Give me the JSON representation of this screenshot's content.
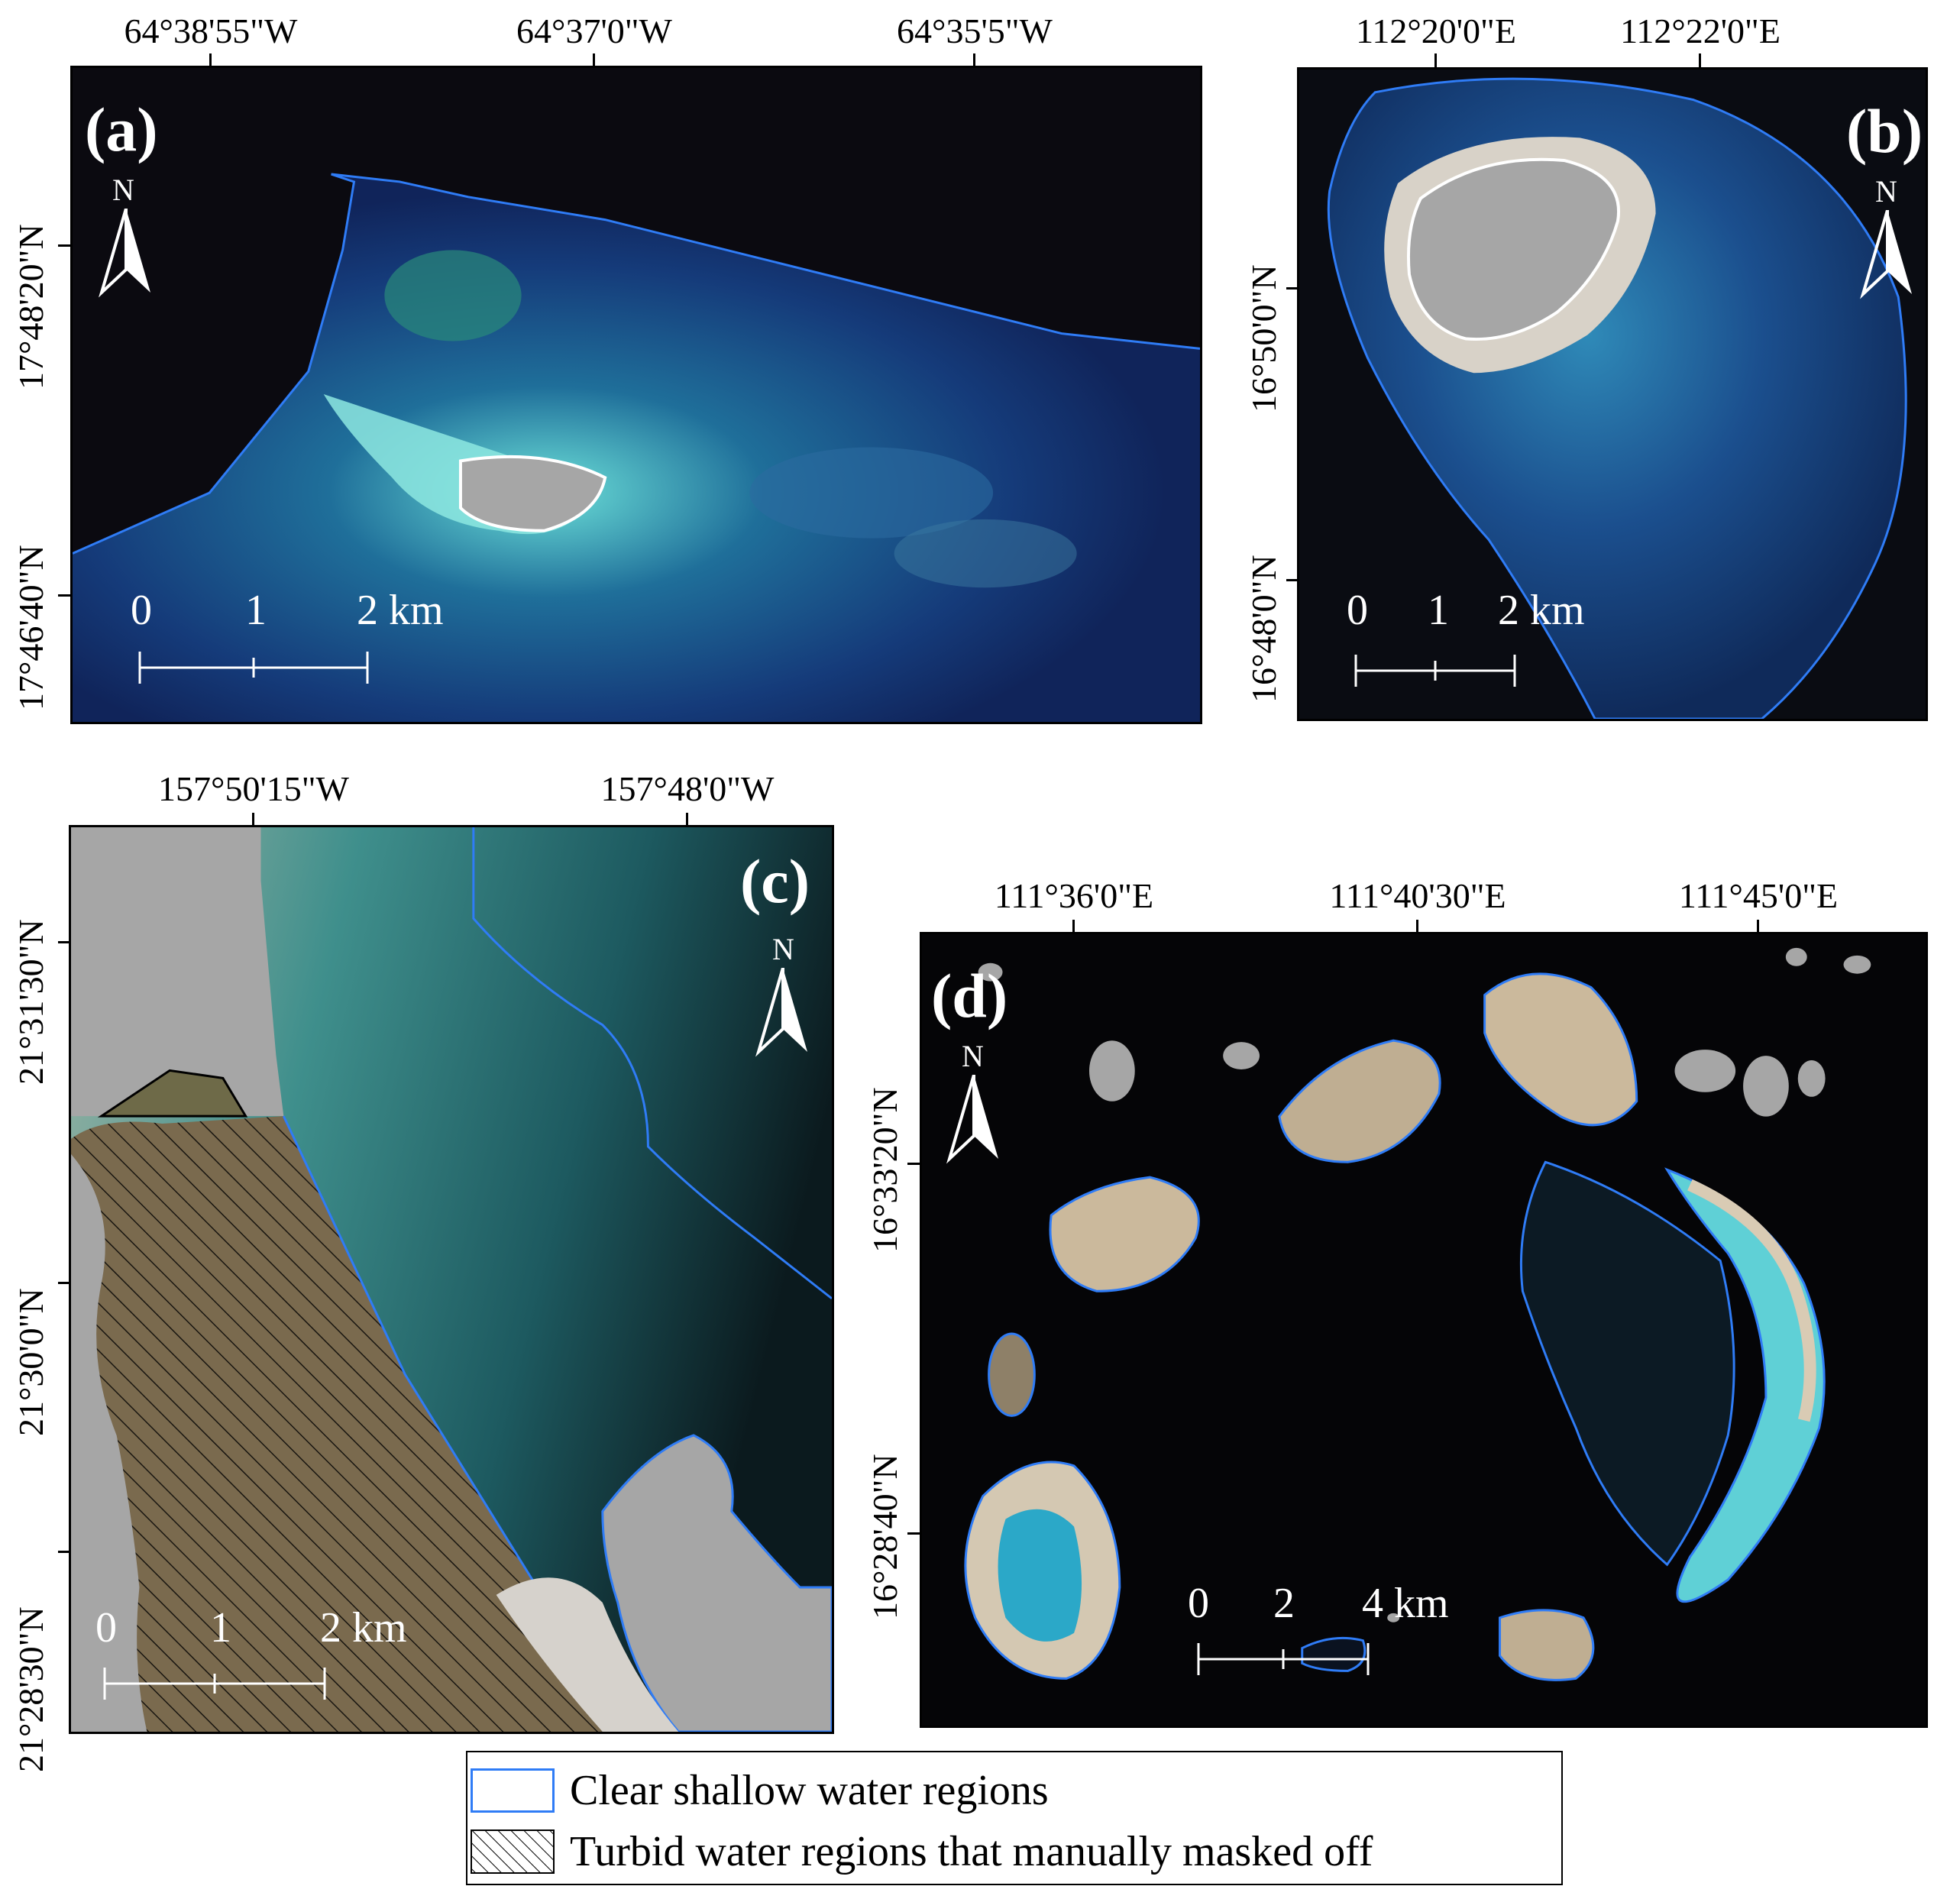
{
  "panels": {
    "a": {
      "label": "(a)",
      "lon_ticks": [
        "64°38'55\"W",
        "64°37'0\"W",
        "64°35'5\"W"
      ],
      "lat_ticks": [
        "17°48'20\"N",
        "17°46'40\"N"
      ],
      "scale": [
        "0",
        "1",
        "2 km"
      ],
      "north": "N"
    },
    "b": {
      "label": "(b)",
      "lon_ticks": [
        "112°20'0\"E",
        "112°22'0\"E"
      ],
      "lat_ticks": [
        "16°50'0\"N",
        "16°48'0\"N"
      ],
      "scale": [
        "0",
        "1",
        "2 km"
      ],
      "north": "N"
    },
    "c": {
      "label": "(c)",
      "lon_ticks": [
        "157°50'15\"W",
        "157°48'0\"W"
      ],
      "lat_ticks": [
        "21°31'30\"N",
        "21°30'0\"N",
        "21°28'30\"N"
      ],
      "scale": [
        "0",
        "1",
        "2 km"
      ],
      "north": "N"
    },
    "d": {
      "label": "(d)",
      "lon_ticks": [
        "111°36'0\"E",
        "111°40'30\"E",
        "111°45'0\"E"
      ],
      "lat_ticks": [
        "16°33'20\"N",
        "16°28'40\"N"
      ],
      "scale": [
        "0",
        "2",
        "4 km"
      ],
      "north": "N"
    }
  },
  "legend": {
    "items": [
      {
        "label": "Clear shallow water regions",
        "swatch": "blue-outline"
      },
      {
        "label": "Turbid water regions that manually masked off",
        "swatch": "hatched"
      }
    ]
  },
  "colors": {
    "boundary": "#2f7cf6",
    "masked": "#a6a6a6",
    "deep_water": "#07080c",
    "shallow_cyan": "#5fd0d6",
    "reef_blue": "#1d4fa6"
  }
}
